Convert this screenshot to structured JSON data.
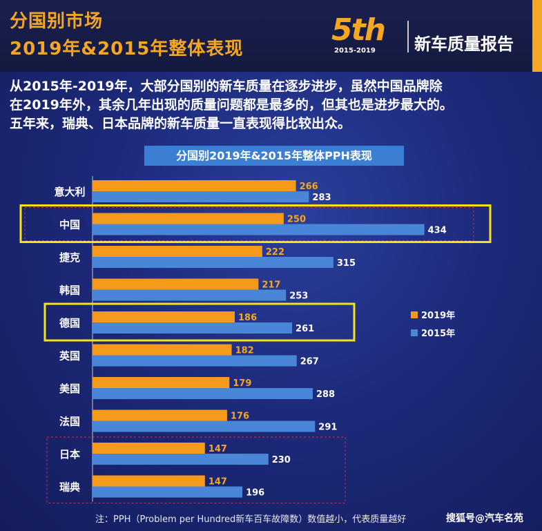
{
  "header": {
    "title_line1": "分国别市场",
    "title_line2": "2019年&2015年整体表现",
    "logo_main": "5th",
    "logo_years": "2015-2019",
    "logo_text": "新车质量报告"
  },
  "description": [
    "从2015年-2019年，大部分国别的新车质量在逐步进步，虽然中国品牌除",
    "在2019年外，其余几年出现的质量问题都是最多的，但其也是进步最大的。",
    "五年来，瑞典、日本品牌的新车质量一直表现得比较出众。"
  ],
  "chart_data": {
    "type": "bar",
    "orientation": "horizontal",
    "title": "分国别2019年&2015年整体PPH表现",
    "categories": [
      "意大利",
      "中国",
      "捷克",
      "韩国",
      "德国",
      "英国",
      "美国",
      "法国",
      "日本",
      "瑞典"
    ],
    "series": [
      {
        "name": "2019年",
        "color": "#f59a1b",
        "values": [
          266,
          250,
          222,
          217,
          186,
          182,
          179,
          176,
          147,
          147
        ]
      },
      {
        "name": "2015年",
        "color": "#4a86d8",
        "values": [
          283,
          434,
          315,
          253,
          261,
          267,
          288,
          291,
          230,
          196
        ]
      }
    ],
    "xlim": [
      0,
      600
    ],
    "legend_position": "right",
    "highlighted_categories": [
      "中国",
      "德国"
    ],
    "highlight_color": "#f5e21a"
  },
  "footer": {
    "note": "注：PPH（Problem per Hundred新车百车故障数）数值越小，代表质量越好",
    "source": "搜狐号@汽车名苑"
  }
}
